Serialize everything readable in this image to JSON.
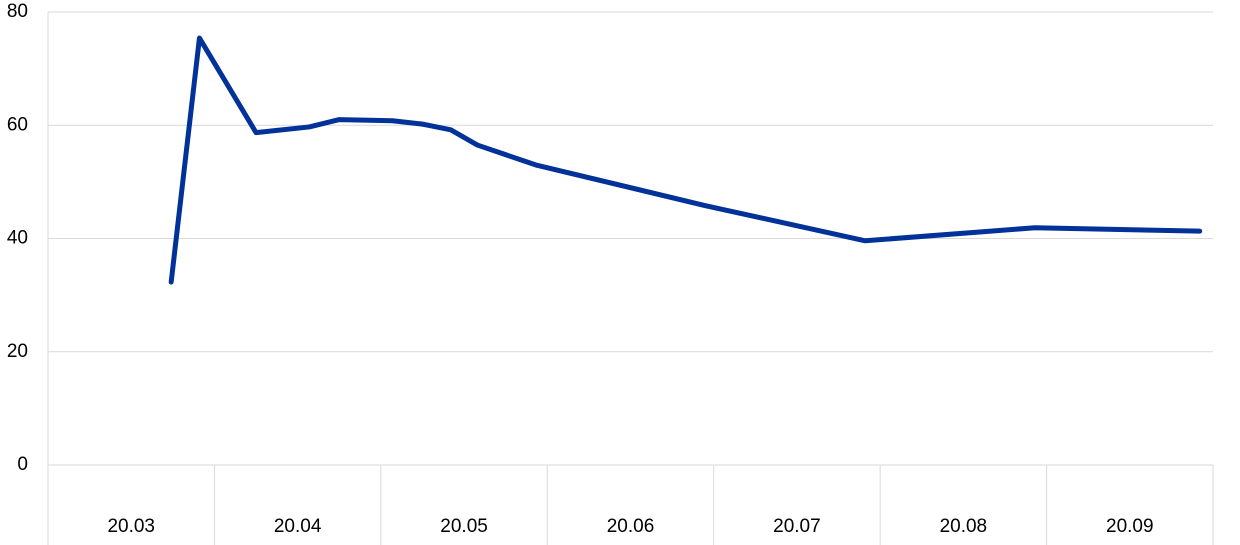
{
  "chart_data": {
    "type": "line",
    "categories": [
      "20.03",
      "20.04",
      "20.05",
      "20.06",
      "20.07",
      "20.08",
      "20.09"
    ],
    "x": [
      0.74,
      0.91,
      1.25,
      1.57,
      1.75,
      2.07,
      2.25,
      2.42,
      2.58,
      2.93,
      3.95,
      4.91,
      5.93,
      6.92
    ],
    "values": [
      32.3,
      75.4,
      58.7,
      59.7,
      61.0,
      60.8,
      60.2,
      59.2,
      56.5,
      53.0,
      45.8,
      39.6,
      41.9,
      41.3
    ],
    "color": "#003299",
    "xlim": [
      0,
      7
    ],
    "ylim": [
      0,
      80
    ],
    "yticks": [
      0,
      20,
      40,
      60,
      80
    ],
    "grid": true
  }
}
